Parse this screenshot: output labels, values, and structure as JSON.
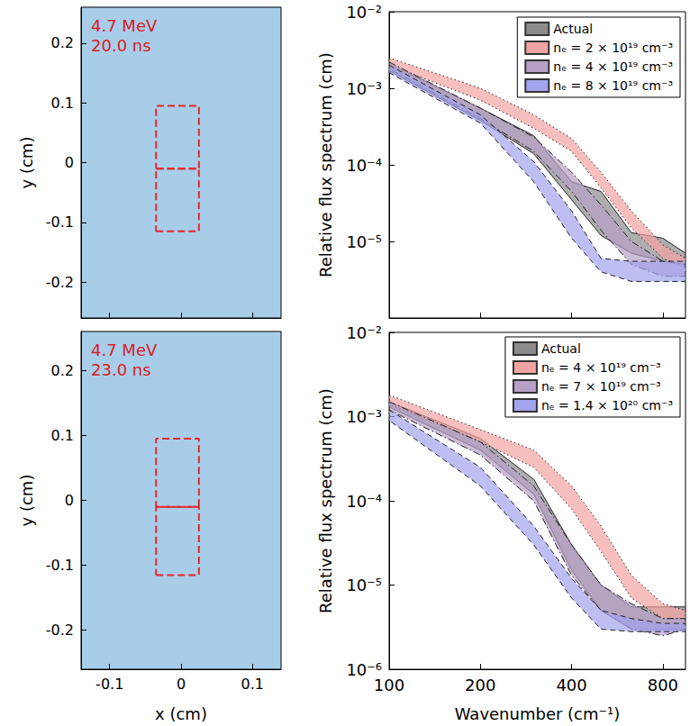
{
  "chart_data": [
    {
      "type": "image",
      "annotations": [
        "4.7 MeV",
        "20.0 ns"
      ],
      "ylabel": "y (cm)",
      "xlim": [
        -0.14,
        0.14
      ],
      "xticks": [
        -0.1,
        0,
        0.1
      ],
      "ylim": [
        -0.26,
        0.26
      ],
      "yticks": [
        -0.2,
        -0.1,
        0,
        0.1,
        0.2
      ],
      "tick_labels": "y",
      "grid": false,
      "color": "#e8262a",
      "line_style": "dashed",
      "boxes": [
        {
          "x": [
            -0.035,
            0.025
          ],
          "y": [
            -0.01,
            0.095
          ]
        },
        {
          "x": [
            -0.035,
            0.025
          ],
          "y": [
            -0.115,
            -0.01
          ]
        }
      ]
    },
    {
      "type": "image",
      "annotations": [
        "4.7 MeV",
        "23.0 ns"
      ],
      "xlabel": "x (cm)",
      "ylabel": "y (cm)",
      "xlim": [
        -0.14,
        0.14
      ],
      "xticks": [
        -0.1,
        0,
        0.1
      ],
      "ylim": [
        -0.26,
        0.26
      ],
      "yticks": [
        -0.2,
        -0.1,
        0,
        0.1,
        0.2
      ],
      "grid": false,
      "color": "#e8262a",
      "line_style": "dashed",
      "boxes": [
        {
          "x": [
            -0.035,
            0.025
          ],
          "y": [
            -0.01,
            0.095
          ]
        },
        {
          "x": [
            -0.035,
            0.025
          ],
          "y": [
            -0.115,
            -0.01
          ]
        }
      ]
    },
    {
      "type": "band",
      "log": true,
      "ylabel": "Relative flux spectrum (cm)",
      "tick_labels": "y",
      "grid": false,
      "legend": "upper right",
      "xlim": [
        100,
        950
      ],
      "xticks": [
        100,
        200,
        400,
        800
      ],
      "ylim": [
        1e-06,
        0.01
      ],
      "yticks": [
        {
          "value": 1e-05,
          "label": "10⁻⁵"
        },
        {
          "value": 0.0001,
          "label": "10⁻⁴"
        },
        {
          "value": 0.001,
          "label": "10⁻³"
        },
        {
          "value": 0.01,
          "label": "10⁻²"
        }
      ],
      "x": [
        100,
        200,
        300,
        400,
        500,
        630,
        800,
        950
      ],
      "series": [
        {
          "name": "Actual",
          "color": "#8c8c8c",
          "line_style": "solid",
          "lower": [
            0.0017,
            0.00038,
            0.00014,
            3.5e-05,
            1.2e-05,
            7e-06,
            5.5e-06,
            5e-06
          ],
          "upper": [
            0.0021,
            0.00055,
            0.00024,
            6e-05,
            4.5e-05,
            1.3e-05,
            1.1e-05,
            7e-06
          ]
        },
        {
          "name": "nₑ = 2 × 10¹⁹ cm⁻³",
          "color": "#f4a3a3",
          "line_style": "dotted",
          "lower": [
            0.002,
            0.0007,
            0.0003,
            0.00015,
            5e-05,
            1.5e-05,
            6e-06,
            4.5e-06
          ],
          "upper": [
            0.0025,
            0.001,
            0.00045,
            0.00022,
            8e-05,
            2.5e-05,
            9e-06,
            6e-06
          ]
        },
        {
          "name": "nₑ = 4 × 10¹⁹ cm⁻³",
          "color": "#b7a0c8",
          "line_style": "dashdot",
          "lower": [
            0.0018,
            0.0004,
            0.00015,
            4.5e-05,
            1.4e-05,
            5e-06,
            3.5e-06,
            3.5e-06
          ],
          "upper": [
            0.0022,
            0.00055,
            0.00023,
            8e-05,
            3e-05,
            1e-05,
            5.5e-06,
            5e-06
          ]
        },
        {
          "name": "nₑ = 8 × 10¹⁹ cm⁻³",
          "color": "#a3a3ee",
          "line_style": "dashed",
          "lower": [
            0.0016,
            0.00035,
            6e-05,
            1.1e-05,
            4e-06,
            3e-06,
            3e-06,
            3e-06
          ],
          "upper": [
            0.002,
            0.00045,
            0.00011,
            2.5e-05,
            6e-06,
            5.5e-06,
            5.5e-06,
            5.5e-06
          ]
        }
      ]
    },
    {
      "type": "band",
      "log": true,
      "xlabel": "Wavenumber (cm⁻¹)",
      "ylabel": "Relative flux spectrum (cm)",
      "grid": false,
      "legend": "upper right",
      "xlim": [
        100,
        950
      ],
      "xticks": [
        100,
        200,
        400,
        800
      ],
      "ylim": [
        1e-06,
        0.01
      ],
      "yticks": [
        {
          "value": 1e-06,
          "label": "10⁻⁶"
        },
        {
          "value": 1e-05,
          "label": "10⁻⁵"
        },
        {
          "value": 0.0001,
          "label": "10⁻⁴"
        },
        {
          "value": 0.001,
          "label": "10⁻³"
        },
        {
          "value": 0.01,
          "label": "10⁻²"
        }
      ],
      "x": [
        100,
        200,
        300,
        400,
        500,
        630,
        800,
        950
      ],
      "series": [
        {
          "name": "Actual",
          "color": "#8c8c8c",
          "line_style": "solid",
          "lower": [
            0.0013,
            0.0004,
            0.00012,
            1.5e-05,
            5e-06,
            3e-06,
            3e-06,
            3e-06
          ],
          "upper": [
            0.0015,
            0.00055,
            0.00018,
            3e-05,
            1e-05,
            5.5e-06,
            5.5e-06,
            5.5e-06
          ]
        },
        {
          "name": "nₑ = 4 × 10¹⁹ cm⁻³",
          "color": "#f4a3a3",
          "line_style": "dotted",
          "lower": [
            0.0014,
            0.0005,
            0.00025,
            8e-05,
            2.5e-05,
            7e-06,
            4e-06,
            4e-06
          ],
          "upper": [
            0.0018,
            0.0007,
            0.0004,
            0.00015,
            5e-05,
            1.3e-05,
            6e-06,
            5e-06
          ]
        },
        {
          "name": "nₑ = 7 × 10¹⁹ cm⁻³",
          "color": "#b7a0c8",
          "line_style": "dashdot",
          "lower": [
            0.0012,
            0.00035,
            0.0001,
            1.3e-05,
            5e-06,
            3e-06,
            2.5e-06,
            3e-06
          ],
          "upper": [
            0.0015,
            0.0005,
            0.00015,
            3e-05,
            1e-05,
            6e-06,
            4e-06,
            4e-06
          ]
        },
        {
          "name": "nₑ = 1.4 × 10²⁰ cm⁻³",
          "color": "#a3a3ee",
          "line_style": "dashed",
          "lower": [
            0.0009,
            0.00015,
            3e-05,
            7e-06,
            3e-06,
            2.8e-06,
            2.8e-06,
            2.8e-06
          ],
          "upper": [
            0.0012,
            0.00025,
            5e-05,
            1.2e-05,
            5e-06,
            4e-06,
            3.5e-06,
            3.5e-06
          ]
        }
      ]
    }
  ]
}
